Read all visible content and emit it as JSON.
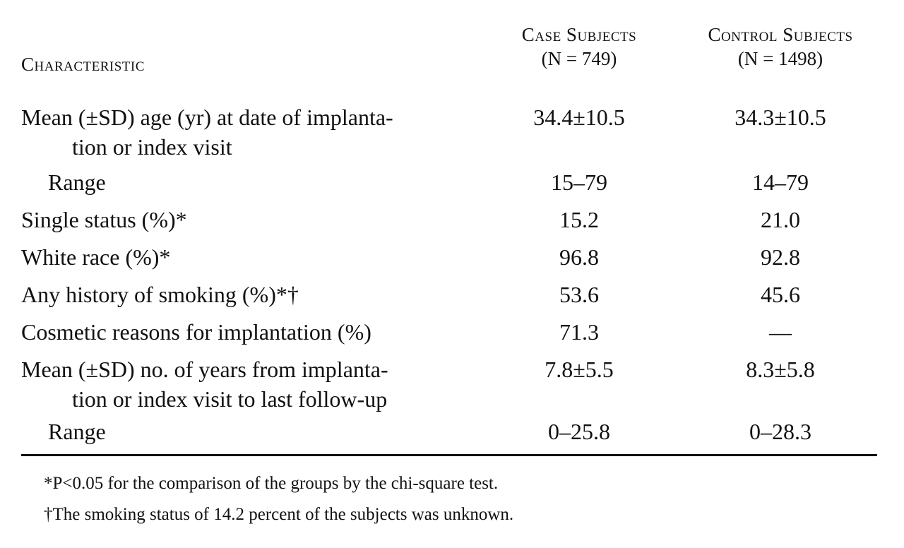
{
  "header": {
    "characteristic": "Characteristic",
    "case": {
      "title": "Case Subjects",
      "n": "(N = 749)"
    },
    "control": {
      "title": "Control Subjects",
      "n": "(N = 1498)"
    }
  },
  "rows": [
    {
      "label1": "Mean (±SD) age (yr) at date of implanta-",
      "label2": "tion or index visit",
      "case": "34.4±10.5",
      "control": "34.3±10.5"
    },
    {
      "label1": "Range",
      "case": "15–79",
      "control": "14–79"
    },
    {
      "label1": "Single status (%)*",
      "case": "15.2",
      "control": "21.0"
    },
    {
      "label1": "White race (%)*",
      "case": "96.8",
      "control": "92.8"
    },
    {
      "label1": "Any history of smoking (%)*†",
      "case": "53.6",
      "control": "45.6"
    },
    {
      "label1": "Cosmetic reasons for implantation (%)",
      "case": "71.3",
      "control": "—"
    },
    {
      "label1": "Mean (±SD) no. of years from implanta-",
      "label2": "tion or index visit to last follow-up",
      "case": "7.8±5.5",
      "control": "8.3±5.8"
    },
    {
      "label1": "Range",
      "case": "0–25.8",
      "control": "0–28.3"
    }
  ],
  "footnotes": [
    "*P<0.05 for the comparison of the groups by the chi-square test.",
    "†The smoking status of 14.2 percent of the subjects was unknown."
  ]
}
